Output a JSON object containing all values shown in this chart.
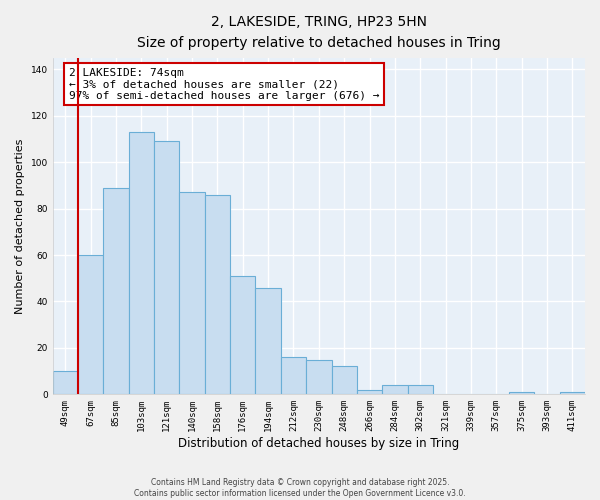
{
  "title": "2, LAKESIDE, TRING, HP23 5HN",
  "subtitle": "Size of property relative to detached houses in Tring",
  "xlabel": "Distribution of detached houses by size in Tring",
  "ylabel": "Number of detached properties",
  "categories": [
    "49sqm",
    "67sqm",
    "85sqm",
    "103sqm",
    "121sqm",
    "140sqm",
    "158sqm",
    "176sqm",
    "194sqm",
    "212sqm",
    "230sqm",
    "248sqm",
    "266sqm",
    "284sqm",
    "302sqm",
    "321sqm",
    "339sqm",
    "357sqm",
    "375sqm",
    "393sqm",
    "411sqm"
  ],
  "values": [
    10,
    60,
    89,
    113,
    109,
    87,
    86,
    51,
    46,
    16,
    15,
    12,
    2,
    4,
    4,
    0,
    0,
    0,
    1,
    0,
    1
  ],
  "bar_color": "#c8ddf0",
  "bar_edge_color": "#6aaed6",
  "vline_x": 1,
  "vline_color": "#cc0000",
  "annotation_text": "2 LAKESIDE: 74sqm\n← 3% of detached houses are smaller (22)\n97% of semi-detached houses are larger (676) →",
  "annotation_box_color": "#ffffff",
  "annotation_box_edge": "#cc0000",
  "ylim": [
    0,
    145
  ],
  "yticks": [
    0,
    20,
    40,
    60,
    80,
    100,
    120,
    140
  ],
  "plot_bg_color": "#e8f0f8",
  "fig_bg_color": "#f0f0f0",
  "grid_color": "#ffffff",
  "footer_line1": "Contains HM Land Registry data © Crown copyright and database right 2025.",
  "footer_line2": "Contains public sector information licensed under the Open Government Licence v3.0."
}
